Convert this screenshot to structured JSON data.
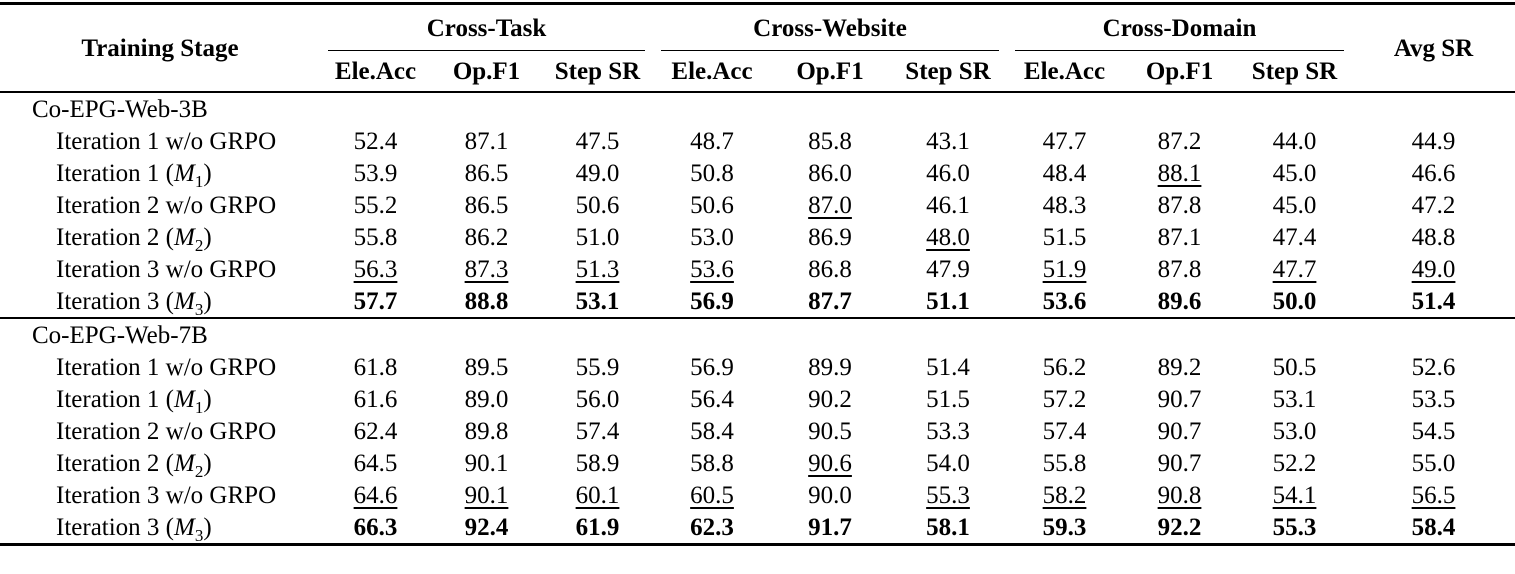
{
  "header": {
    "stage": "Training Stage",
    "avg": "Avg SR",
    "groups": [
      {
        "label": "Cross-Task",
        "sub": [
          "Ele.Acc",
          "Op.F1",
          "Step SR"
        ]
      },
      {
        "label": "Cross-Website",
        "sub": [
          "Ele.Acc",
          "Op.F1",
          "Step SR"
        ]
      },
      {
        "label": "Cross-Domain",
        "sub": [
          "Ele.Acc",
          "Op.F1",
          "Step SR"
        ]
      }
    ]
  },
  "style_legend": {
    "plain": "normal value",
    "underline": "second-best value",
    "bold": "best value"
  },
  "sections": [
    {
      "title": "Co-EPG-Web-3B",
      "rows": [
        {
          "label": {
            "prefix": "Iteration 1 w/o GRPO",
            "math": "",
            "sub": "",
            "suffix": ""
          },
          "cells": [
            {
              "v": "52.4",
              "cls": "plain"
            },
            {
              "v": "87.1",
              "cls": "plain"
            },
            {
              "v": "47.5",
              "cls": "plain"
            },
            {
              "v": "48.7",
              "cls": "plain"
            },
            {
              "v": "85.8",
              "cls": "plain"
            },
            {
              "v": "43.1",
              "cls": "plain"
            },
            {
              "v": "47.7",
              "cls": "plain"
            },
            {
              "v": "87.2",
              "cls": "plain"
            },
            {
              "v": "44.0",
              "cls": "plain"
            },
            {
              "v": "44.9",
              "cls": "plain"
            }
          ]
        },
        {
          "label": {
            "prefix": "Iteration 1 (",
            "math": "M",
            "sub": "1",
            "suffix": ")"
          },
          "cells": [
            {
              "v": "53.9",
              "cls": "plain"
            },
            {
              "v": "86.5",
              "cls": "plain"
            },
            {
              "v": "49.0",
              "cls": "plain"
            },
            {
              "v": "50.8",
              "cls": "plain"
            },
            {
              "v": "86.0",
              "cls": "plain"
            },
            {
              "v": "46.0",
              "cls": "plain"
            },
            {
              "v": "48.4",
              "cls": "plain"
            },
            {
              "v": "88.1",
              "cls": "underline"
            },
            {
              "v": "45.0",
              "cls": "plain"
            },
            {
              "v": "46.6",
              "cls": "plain"
            }
          ]
        },
        {
          "label": {
            "prefix": "Iteration 2 w/o GRPO",
            "math": "",
            "sub": "",
            "suffix": ""
          },
          "cells": [
            {
              "v": "55.2",
              "cls": "plain"
            },
            {
              "v": "86.5",
              "cls": "plain"
            },
            {
              "v": "50.6",
              "cls": "plain"
            },
            {
              "v": "50.6",
              "cls": "plain"
            },
            {
              "v": "87.0",
              "cls": "underline"
            },
            {
              "v": "46.1",
              "cls": "plain"
            },
            {
              "v": "48.3",
              "cls": "plain"
            },
            {
              "v": "87.8",
              "cls": "plain"
            },
            {
              "v": "45.0",
              "cls": "plain"
            },
            {
              "v": "47.2",
              "cls": "plain"
            }
          ]
        },
        {
          "label": {
            "prefix": "Iteration 2 (",
            "math": "M",
            "sub": "2",
            "suffix": ")"
          },
          "cells": [
            {
              "v": "55.8",
              "cls": "plain"
            },
            {
              "v": "86.2",
              "cls": "plain"
            },
            {
              "v": "51.0",
              "cls": "plain"
            },
            {
              "v": "53.0",
              "cls": "plain"
            },
            {
              "v": "86.9",
              "cls": "plain"
            },
            {
              "v": "48.0",
              "cls": "underline"
            },
            {
              "v": "51.5",
              "cls": "plain"
            },
            {
              "v": "87.1",
              "cls": "plain"
            },
            {
              "v": "47.4",
              "cls": "plain"
            },
            {
              "v": "48.8",
              "cls": "plain"
            }
          ]
        },
        {
          "label": {
            "prefix": "Iteration 3 w/o GRPO",
            "math": "",
            "sub": "",
            "suffix": ""
          },
          "cells": [
            {
              "v": "56.3",
              "cls": "underline"
            },
            {
              "v": "87.3",
              "cls": "underline"
            },
            {
              "v": "51.3",
              "cls": "underline"
            },
            {
              "v": "53.6",
              "cls": "underline"
            },
            {
              "v": "86.8",
              "cls": "plain"
            },
            {
              "v": "47.9",
              "cls": "plain"
            },
            {
              "v": "51.9",
              "cls": "underline"
            },
            {
              "v": "87.8",
              "cls": "plain"
            },
            {
              "v": "47.7",
              "cls": "underline"
            },
            {
              "v": "49.0",
              "cls": "underline"
            }
          ]
        },
        {
          "label": {
            "prefix": "Iteration 3 (",
            "math": "M",
            "sub": "3",
            "suffix": ")"
          },
          "cells": [
            {
              "v": "57.7",
              "cls": "bold"
            },
            {
              "v": "88.8",
              "cls": "bold"
            },
            {
              "v": "53.1",
              "cls": "bold"
            },
            {
              "v": "56.9",
              "cls": "bold"
            },
            {
              "v": "87.7",
              "cls": "bold"
            },
            {
              "v": "51.1",
              "cls": "bold"
            },
            {
              "v": "53.6",
              "cls": "bold"
            },
            {
              "v": "89.6",
              "cls": "bold"
            },
            {
              "v": "50.0",
              "cls": "bold"
            },
            {
              "v": "51.4",
              "cls": "bold"
            }
          ]
        }
      ]
    },
    {
      "title": "Co-EPG-Web-7B",
      "rows": [
        {
          "label": {
            "prefix": "Iteration 1 w/o GRPO",
            "math": "",
            "sub": "",
            "suffix": ""
          },
          "cells": [
            {
              "v": "61.8",
              "cls": "plain"
            },
            {
              "v": "89.5",
              "cls": "plain"
            },
            {
              "v": "55.9",
              "cls": "plain"
            },
            {
              "v": "56.9",
              "cls": "plain"
            },
            {
              "v": "89.9",
              "cls": "plain"
            },
            {
              "v": "51.4",
              "cls": "plain"
            },
            {
              "v": "56.2",
              "cls": "plain"
            },
            {
              "v": "89.2",
              "cls": "plain"
            },
            {
              "v": "50.5",
              "cls": "plain"
            },
            {
              "v": "52.6",
              "cls": "plain"
            }
          ]
        },
        {
          "label": {
            "prefix": "Iteration 1 (",
            "math": "M",
            "sub": "1",
            "suffix": ")"
          },
          "cells": [
            {
              "v": "61.6",
              "cls": "plain"
            },
            {
              "v": "89.0",
              "cls": "plain"
            },
            {
              "v": "56.0",
              "cls": "plain"
            },
            {
              "v": "56.4",
              "cls": "plain"
            },
            {
              "v": "90.2",
              "cls": "plain"
            },
            {
              "v": "51.5",
              "cls": "plain"
            },
            {
              "v": "57.2",
              "cls": "plain"
            },
            {
              "v": "90.7",
              "cls": "plain"
            },
            {
              "v": "53.1",
              "cls": "plain"
            },
            {
              "v": "53.5",
              "cls": "plain"
            }
          ]
        },
        {
          "label": {
            "prefix": "Iteration 2 w/o GRPO",
            "math": "",
            "sub": "",
            "suffix": ""
          },
          "cells": [
            {
              "v": "62.4",
              "cls": "plain"
            },
            {
              "v": "89.8",
              "cls": "plain"
            },
            {
              "v": "57.4",
              "cls": "plain"
            },
            {
              "v": "58.4",
              "cls": "plain"
            },
            {
              "v": "90.5",
              "cls": "plain"
            },
            {
              "v": "53.3",
              "cls": "plain"
            },
            {
              "v": "57.4",
              "cls": "plain"
            },
            {
              "v": "90.7",
              "cls": "plain"
            },
            {
              "v": "53.0",
              "cls": "plain"
            },
            {
              "v": "54.5",
              "cls": "plain"
            }
          ]
        },
        {
          "label": {
            "prefix": "Iteration 2 (",
            "math": "M",
            "sub": "2",
            "suffix": ")"
          },
          "cells": [
            {
              "v": "64.5",
              "cls": "plain"
            },
            {
              "v": "90.1",
              "cls": "plain"
            },
            {
              "v": "58.9",
              "cls": "plain"
            },
            {
              "v": "58.8",
              "cls": "plain"
            },
            {
              "v": "90.6",
              "cls": "underline"
            },
            {
              "v": "54.0",
              "cls": "plain"
            },
            {
              "v": "55.8",
              "cls": "plain"
            },
            {
              "v": "90.7",
              "cls": "plain"
            },
            {
              "v": "52.2",
              "cls": "plain"
            },
            {
              "v": "55.0",
              "cls": "plain"
            }
          ]
        },
        {
          "label": {
            "prefix": "Iteration 3 w/o GRPO",
            "math": "",
            "sub": "",
            "suffix": ""
          },
          "cells": [
            {
              "v": "64.6",
              "cls": "underline"
            },
            {
              "v": "90.1",
              "cls": "underline"
            },
            {
              "v": "60.1",
              "cls": "underline"
            },
            {
              "v": "60.5",
              "cls": "underline"
            },
            {
              "v": "90.0",
              "cls": "plain"
            },
            {
              "v": "55.3",
              "cls": "underline"
            },
            {
              "v": "58.2",
              "cls": "underline"
            },
            {
              "v": "90.8",
              "cls": "underline"
            },
            {
              "v": "54.1",
              "cls": "underline"
            },
            {
              "v": "56.5",
              "cls": "underline"
            }
          ]
        },
        {
          "label": {
            "prefix": "Iteration 3 (",
            "math": "M",
            "sub": "3",
            "suffix": ")"
          },
          "cells": [
            {
              "v": "66.3",
              "cls": "bold"
            },
            {
              "v": "92.4",
              "cls": "bold"
            },
            {
              "v": "61.9",
              "cls": "bold"
            },
            {
              "v": "62.3",
              "cls": "bold"
            },
            {
              "v": "91.7",
              "cls": "bold"
            },
            {
              "v": "58.1",
              "cls": "bold"
            },
            {
              "v": "59.3",
              "cls": "bold"
            },
            {
              "v": "92.2",
              "cls": "bold"
            },
            {
              "v": "55.3",
              "cls": "bold"
            },
            {
              "v": "58.4",
              "cls": "bold"
            }
          ]
        }
      ]
    }
  ]
}
